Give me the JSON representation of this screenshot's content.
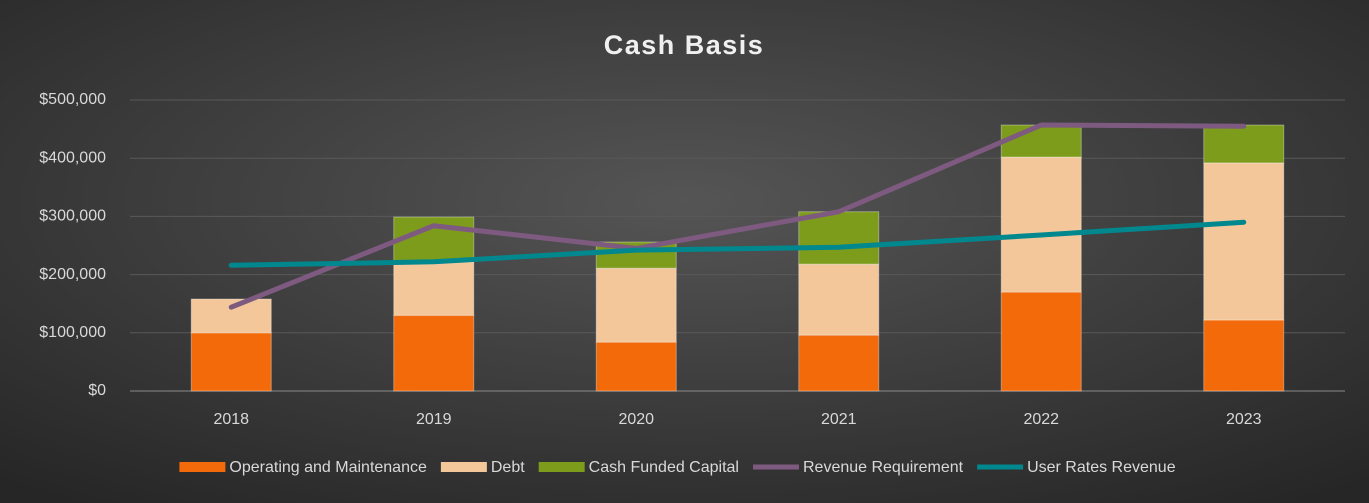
{
  "chart_data": {
    "type": "bar",
    "title": "Cash Basis",
    "categories": [
      "2018",
      "2019",
      "2020",
      "2021",
      "2022",
      "2023"
    ],
    "series": [
      {
        "name": "Operating and Maintenance",
        "type": "bar",
        "color": "#f26a0a",
        "values": [
          100000,
          130000,
          84000,
          96000,
          170000,
          122000
        ]
      },
      {
        "name": "Debt",
        "type": "bar",
        "color": "#f3c79a",
        "values": [
          58000,
          92000,
          127000,
          122000,
          232000,
          270000
        ]
      },
      {
        "name": "Cash Funded Capital",
        "type": "bar",
        "color": "#7d9c1c",
        "values": [
          0,
          77000,
          45000,
          90000,
          55000,
          65000
        ]
      },
      {
        "name": "Revenue Requirement",
        "type": "line",
        "color": "#7e5a80",
        "values": [
          144000,
          284000,
          245000,
          308000,
          457000,
          455000
        ]
      },
      {
        "name": "User Rates Revenue",
        "type": "line",
        "color": "#00888e",
        "values": [
          216000,
          222000,
          242000,
          247000,
          268000,
          290000
        ]
      }
    ],
    "ylim": [
      0,
      500000
    ],
    "yticks": [
      {
        "value": 0,
        "label": "$0"
      },
      {
        "value": 100000,
        "label": "$100,000"
      },
      {
        "value": 200000,
        "label": "$200,000"
      },
      {
        "value": 300000,
        "label": "$300,000"
      },
      {
        "value": 400000,
        "label": "$400,000"
      },
      {
        "value": 500000,
        "label": "$500,000"
      }
    ],
    "grid": true,
    "legend": "bottom"
  }
}
